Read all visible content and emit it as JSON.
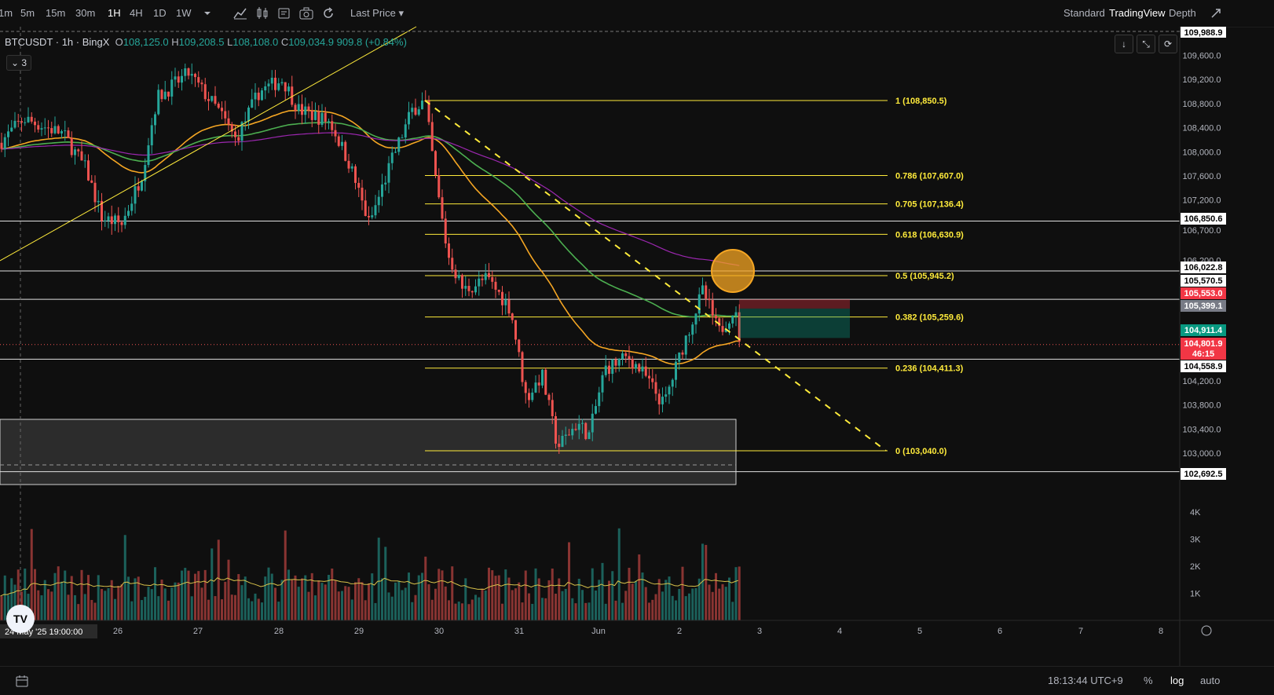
{
  "toolbar": {
    "intervals": [
      "1m",
      "5m",
      "15m",
      "30m",
      "1H",
      "4H",
      "1D",
      "1W"
    ],
    "active_interval": "1H",
    "price_source": "Last Price",
    "views": [
      "Standard",
      "TradingView",
      "Depth"
    ],
    "active_view": "TradingView"
  },
  "legend": {
    "symbol": "BTCUSDT · 1h · BingX",
    "open_label": "O",
    "open": "108,125.0",
    "high_label": "H",
    "high": "109,208.5",
    "low_label": "L",
    "low": "108,108.0",
    "close_label": "C",
    "close": "109,034.9",
    "change": "909.8 (+0.84%)",
    "indicators_count": "3"
  },
  "price_axis": {
    "ticks": [
      "109,600.0",
      "109,200.0",
      "108,800.0",
      "108,400.0",
      "108,000.0",
      "107,600.0",
      "107,200.0",
      "106,700.0",
      "106,200.0",
      "104,200.0",
      "103,800.0",
      "103,400.0",
      "103,000.0"
    ],
    "top_label": "109,988.9",
    "levels": [
      {
        "text": "106,850.6",
        "color": "#ffffff",
        "fg": "#000000"
      },
      {
        "text": "106,022.8",
        "color": "#ffffff",
        "fg": "#000000"
      },
      {
        "text": "105,570.5",
        "color": "#ffffff",
        "fg": "#000000"
      },
      {
        "text": "105,553.0",
        "color": "#f23645",
        "fg": "#ffffff"
      },
      {
        "text": "105,399.1",
        "color": "#787b86",
        "fg": "#ffffff"
      },
      {
        "text": "104,911.4",
        "color": "#089981",
        "fg": "#ffffff"
      },
      {
        "text": "104,801.9",
        "color": "#f23645",
        "fg": "#ffffff"
      },
      {
        "text": "46:15",
        "color": "#f23645",
        "fg": "#ffffff"
      },
      {
        "text": "104,558.9",
        "color": "#ffffff",
        "fg": "#000000"
      },
      {
        "text": "102,692.5",
        "color": "#ffffff",
        "fg": "#000000"
      }
    ]
  },
  "fib_levels": [
    {
      "ratio": "1",
      "label": "1 (108,850.5)"
    },
    {
      "ratio": "0.786",
      "label": "0.786 (107,607.0)"
    },
    {
      "ratio": "0.705",
      "label": "0.705 (107,136.4)"
    },
    {
      "ratio": "0.618",
      "label": "0.618 (106,630.9)"
    },
    {
      "ratio": "0.5",
      "label": "0.5 (105,945.2)"
    },
    {
      "ratio": "0.382",
      "label": "0.382 (105,259.6)"
    },
    {
      "ratio": "0.236",
      "label": "0.236 (104,411.3)"
    },
    {
      "ratio": "0",
      "label": "0 (103,040.0)"
    }
  ],
  "volume_axis": {
    "ticks": [
      "4K",
      "3K",
      "2K",
      "1K"
    ]
  },
  "time_axis": {
    "cursor_label": "24 May '25  19:00:00",
    "ticks": [
      "26",
      "27",
      "28",
      "29",
      "30",
      "31",
      "Jun",
      "2",
      "3",
      "4",
      "5",
      "6",
      "7",
      "8"
    ]
  },
  "statusbar": {
    "clock": "18:13:44 UTC+9",
    "percent": "%",
    "log": "log",
    "auto": "auto"
  },
  "colors": {
    "up": "#26a69a",
    "down": "#ef5350",
    "fib": "#ffeb3b",
    "ema_fast": "#f5a623",
    "ema_mid": "#4caf50",
    "ema_slow": "#9c27b0",
    "background": "#0f0f0f"
  },
  "icons": [
    "chevron-down-icon",
    "indicators-icon",
    "compare-icon",
    "alert-icon",
    "camera-icon",
    "refresh-icon",
    "expand-icon",
    "arrow-down-icon",
    "fullscreen-icon",
    "reset-icon",
    "settings-icon",
    "calendar-icon",
    "tradingview-logo-icon"
  ]
}
